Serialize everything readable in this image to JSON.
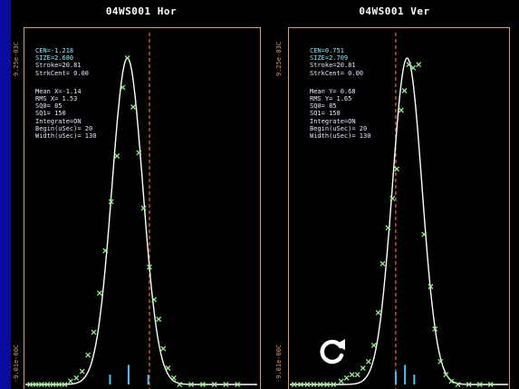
{
  "colors": {
    "background": "#0a0aa0",
    "panel": "#000000",
    "frame": "#d79a6a",
    "fit_curve": "#ffffff",
    "data_marker": "#9af08f",
    "center_line": "#d8643c",
    "stat_text": "#e9e9ff",
    "stat_highlight": "#8fe8ff",
    "wire_tick": "#4fc3f7"
  },
  "icons": {
    "refresh": "refresh-icon"
  },
  "chart_data": [
    {
      "type": "scatter",
      "title": "04WS001 Hor",
      "ymax_label": "9.25e-03C",
      "ymin_label": "-9.01e-00C",
      "stats": {
        "cen": "CEN=-1.218",
        "size": "SIZE=2.680",
        "stroke": "Stroke=20.81",
        "strkcent": "StrkCent= 0.00",
        "mean": "Mean X=-1.14",
        "rms": "RMS X= 1.53",
        "sq0": "SQ0= 85",
        "sq1": "SQ1= 150",
        "integrate": "Integrate=ON",
        "begin": "Begin(uSec)= 20",
        "width": "Width(uSec)= 130"
      },
      "xlim": [
        -10,
        10
      ],
      "ylim": [
        0,
        1.05
      ],
      "fit": {
        "type": "gaussian",
        "center": -1.2,
        "sigma": 1.33,
        "amplitude": 1.0
      },
      "center_line_x": 0.7,
      "points": [
        {
          "x": -9.6,
          "y": 0.0
        },
        {
          "x": -9.1,
          "y": 0.0
        },
        {
          "x": -8.6,
          "y": 0.0
        },
        {
          "x": -8.1,
          "y": 0.0
        },
        {
          "x": -7.6,
          "y": 0.0
        },
        {
          "x": -7.1,
          "y": 0.0
        },
        {
          "x": -6.6,
          "y": 0.0
        },
        {
          "x": -6.1,
          "y": 0.01
        },
        {
          "x": -5.6,
          "y": 0.02
        },
        {
          "x": -5.1,
          "y": 0.04
        },
        {
          "x": -4.6,
          "y": 0.09
        },
        {
          "x": -4.1,
          "y": 0.16
        },
        {
          "x": -3.6,
          "y": 0.28
        },
        {
          "x": -3.1,
          "y": 0.41
        },
        {
          "x": -2.6,
          "y": 0.56
        },
        {
          "x": -2.1,
          "y": 0.7
        },
        {
          "x": -1.6,
          "y": 0.91
        },
        {
          "x": -1.2,
          "y": 1.0
        },
        {
          "x": -0.7,
          "y": 0.85
        },
        {
          "x": -0.2,
          "y": 0.71
        },
        {
          "x": 0.2,
          "y": 0.54
        },
        {
          "x": 0.7,
          "y": 0.36
        },
        {
          "x": 1.1,
          "y": 0.26
        },
        {
          "x": 1.5,
          "y": 0.2
        },
        {
          "x": 1.9,
          "y": 0.11
        },
        {
          "x": 2.3,
          "y": 0.05
        },
        {
          "x": 2.8,
          "y": 0.02
        },
        {
          "x": 3.3,
          "y": 0.0
        },
        {
          "x": 4.3,
          "y": 0.0
        },
        {
          "x": 5.3,
          "y": 0.0
        },
        {
          "x": 6.3,
          "y": 0.0
        },
        {
          "x": 7.3,
          "y": 0.0
        },
        {
          "x": 8.3,
          "y": 0.0
        }
      ],
      "wire_ticks": [
        {
          "x": -2.7,
          "y": 0.03
        },
        {
          "x": -1.1,
          "y": 0.06
        },
        {
          "x": 0.6,
          "y": 0.03
        }
      ]
    },
    {
      "type": "scatter",
      "title": "04WS001 Ver",
      "ymax_label": "9.25e-03C",
      "ymin_label": "-9.01e-00C",
      "stats": {
        "cen": "CEN=0.751",
        "size": "SIZE=2.709",
        "stroke": "Stroke=20.81",
        "strkcent": "StrkCent= 0.00",
        "mean": "Mean Y= 0.68",
        "rms": "RMS Y= 1.65",
        "sq0": "SQ0= 85",
        "sq1": "SQ1= 150",
        "integrate": "Integrate=ON",
        "begin": "Begin(uSec)= 20",
        "width": "Width(uSec)= 130"
      },
      "xlim": [
        -10,
        10
      ],
      "ylim": [
        0,
        1.05
      ],
      "fit": {
        "type": "gaussian",
        "center": 0.75,
        "sigma": 1.36,
        "amplitude": 1.0
      },
      "center_line_x": -0.3,
      "points": [
        {
          "x": -9.6,
          "y": 0.0
        },
        {
          "x": -9.0,
          "y": 0.0
        },
        {
          "x": -8.4,
          "y": 0.0
        },
        {
          "x": -7.8,
          "y": 0.0
        },
        {
          "x": -7.2,
          "y": 0.0
        },
        {
          "x": -6.6,
          "y": 0.0
        },
        {
          "x": -6.0,
          "y": 0.0
        },
        {
          "x": -5.3,
          "y": 0.01
        },
        {
          "x": -4.8,
          "y": 0.02
        },
        {
          "x": -4.3,
          "y": 0.03
        },
        {
          "x": -3.8,
          "y": 0.03
        },
        {
          "x": -3.3,
          "y": 0.05
        },
        {
          "x": -2.8,
          "y": 0.07
        },
        {
          "x": -2.3,
          "y": 0.12
        },
        {
          "x": -1.9,
          "y": 0.22
        },
        {
          "x": -1.5,
          "y": 0.37
        },
        {
          "x": -1.0,
          "y": 0.48
        },
        {
          "x": -0.6,
          "y": 0.57
        },
        {
          "x": -0.2,
          "y": 0.66
        },
        {
          "x": 0.2,
          "y": 0.84
        },
        {
          "x": 0.5,
          "y": 0.9
        },
        {
          "x": 0.9,
          "y": 0.98
        },
        {
          "x": 1.3,
          "y": 0.97
        },
        {
          "x": 1.8,
          "y": 0.98
        },
        {
          "x": 2.3,
          "y": 0.46
        },
        {
          "x": 2.9,
          "y": 0.3
        },
        {
          "x": 3.3,
          "y": 0.17
        },
        {
          "x": 3.8,
          "y": 0.07
        },
        {
          "x": 4.3,
          "y": 0.03
        },
        {
          "x": 4.8,
          "y": 0.01
        },
        {
          "x": 5.4,
          "y": 0.0
        },
        {
          "x": 6.4,
          "y": 0.0
        },
        {
          "x": 7.4,
          "y": 0.0
        },
        {
          "x": 8.4,
          "y": 0.0
        }
      ],
      "wire_ticks": [
        {
          "x": -0.3,
          "y": 0.04
        },
        {
          "x": 0.55,
          "y": 0.06
        },
        {
          "x": 1.4,
          "y": 0.03
        }
      ]
    }
  ]
}
